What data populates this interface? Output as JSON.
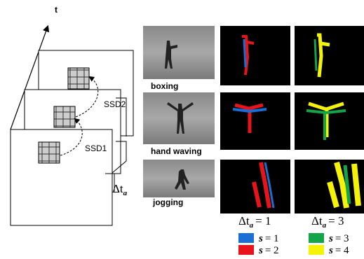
{
  "diagram": {
    "axis_label": "t",
    "ssd_labels": [
      "SSD2",
      "SSD1"
    ],
    "frame_gap": {
      "symbol": "Δt",
      "sub": "a"
    },
    "rows": [
      "boxing",
      "hand waving",
      "jogging"
    ],
    "columns": [
      {
        "symbol": "Δt",
        "sub": "a",
        "eq": "= 1"
      },
      {
        "symbol": "Δt",
        "sub": "a",
        "eq": "= 3"
      }
    ],
    "legend": [
      {
        "var": "s",
        "eq": "= 1",
        "color": "#1a6fd6"
      },
      {
        "var": "s",
        "eq": "= 2",
        "color": "#e8141b"
      },
      {
        "var": "s",
        "eq": "= 3",
        "color": "#12a54a"
      },
      {
        "var": "s",
        "eq": "= 4",
        "color": "#f5f20a"
      }
    ]
  }
}
